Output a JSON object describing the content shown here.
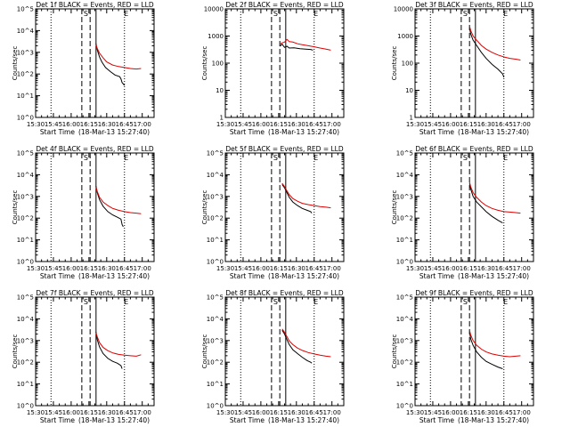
{
  "figure": {
    "xlabel_prefix": "Start Time",
    "start_time": "(18-Mar-13 15:27:40)",
    "time_ticks": [
      "15:30",
      "15:45",
      "16:00",
      "16:15",
      "16:30",
      "16:45",
      "17:00"
    ],
    "ylabel": "Counts/sec",
    "legend_text": "BLACK = Events, RED = LLD",
    "marker_labels": [
      "S",
      "E"
    ],
    "colors": {
      "events": "#000000",
      "lld": "#dd0000",
      "frame": "#000000"
    }
  },
  "chart_data": [
    {
      "type": "line",
      "detector": "Det 1f",
      "title": "Det 1f  BLACK = Events, RED = LLD",
      "y_log": true,
      "ylim": [
        1,
        100000
      ],
      "yticks": [
        "10^0",
        "10^1",
        "10^2",
        "10^3",
        "10^4",
        "10^5"
      ],
      "xlim": [
        "15:30",
        "17:10"
      ],
      "dotted_x": [
        "15:43",
        "16:45"
      ],
      "dashed_x": [
        "16:09",
        "16:16"
      ],
      "solid_x": [
        "16:21"
      ],
      "marker_S_x": "16:09",
      "marker_E_x": "16:43",
      "series": [
        {
          "name": "Events",
          "color": "#000000",
          "x": [
            "16:21",
            "16:22",
            "16:24",
            "16:26",
            "16:29",
            "16:33",
            "16:37",
            "16:41",
            "16:42",
            "16:43",
            "16:44",
            "16:45"
          ],
          "y": [
            2500,
            1300,
            600,
            350,
            200,
            130,
            90,
            75,
            60,
            40,
            35,
            30
          ]
        },
        {
          "name": "LLD",
          "color": "#dd0000",
          "x": [
            "16:21",
            "16:22",
            "16:24",
            "16:27",
            "16:30",
            "16:35",
            "16:40",
            "16:45",
            "16:50",
            "16:55",
            "16:59"
          ],
          "y": [
            2200,
            1500,
            900,
            550,
            360,
            260,
            220,
            200,
            180,
            170,
            180
          ]
        }
      ]
    },
    {
      "type": "line",
      "detector": "Det 2f",
      "title": "Det 2f  BLACK = Events, RED = LLD",
      "y_log": true,
      "ylim": [
        1,
        10000
      ],
      "yticks": [
        "1",
        "10",
        "100",
        "1000",
        "10000"
      ],
      "xlim": [
        "15:30",
        "17:10"
      ],
      "dotted_x": [
        "15:43",
        "16:45"
      ],
      "dashed_x": [
        "16:09",
        "16:16"
      ],
      "solid_x": [
        "16:21"
      ],
      "marker_S_x": "16:09",
      "marker_E_x": "16:43",
      "series": [
        {
          "name": "Events",
          "color": "#000000",
          "x": [
            "16:16",
            "16:18",
            "16:20",
            "16:22",
            "16:24",
            "16:28",
            "16:33",
            "16:38",
            "16:42",
            "16:44"
          ],
          "y": [
            420,
            500,
            380,
            420,
            360,
            370,
            340,
            330,
            320,
            300
          ]
        },
        {
          "name": "LLD",
          "color": "#dd0000",
          "x": [
            "16:16",
            "16:18",
            "16:20",
            "16:22",
            "16:24",
            "16:27",
            "16:31",
            "16:35",
            "16:40",
            "16:45",
            "16:50",
            "16:55",
            "16:59"
          ],
          "y": [
            500,
            560,
            600,
            750,
            620,
            600,
            520,
            480,
            440,
            400,
            360,
            330,
            300
          ]
        }
      ]
    },
    {
      "type": "line",
      "detector": "Det 3f",
      "title": "Det 3f  BLACK = Events, RED = LLD",
      "y_log": true,
      "ylim": [
        1,
        10000
      ],
      "yticks": [
        "1",
        "10",
        "100",
        "1000",
        "10000"
      ],
      "xlim": [
        "15:30",
        "17:10"
      ],
      "dotted_x": [
        "15:43",
        "16:45"
      ],
      "dashed_x": [
        "16:09",
        "16:16"
      ],
      "solid_x": [
        "16:21"
      ],
      "marker_S_x": "16:09",
      "marker_E_x": "16:43",
      "series": [
        {
          "name": "Events",
          "color": "#000000",
          "x": [
            "16:16",
            "16:17",
            "16:19",
            "16:22",
            "16:26",
            "16:30",
            "16:35",
            "16:40",
            "16:44",
            "16:45"
          ],
          "y": [
            2000,
            1200,
            700,
            450,
            250,
            150,
            90,
            60,
            40,
            30
          ]
        },
        {
          "name": "LLD",
          "color": "#dd0000",
          "x": [
            "16:16",
            "16:17",
            "16:19",
            "16:22",
            "16:26",
            "16:30",
            "16:35",
            "16:40",
            "16:45",
            "16:50",
            "16:55",
            "16:59"
          ],
          "y": [
            2300,
            1600,
            1000,
            700,
            450,
            330,
            250,
            200,
            170,
            150,
            140,
            130
          ]
        }
      ]
    },
    {
      "type": "line",
      "detector": "Det 4f",
      "title": "Det 4f  BLACK = Events, RED = LLD",
      "y_log": true,
      "ylim": [
        1,
        100000
      ],
      "yticks": [
        "10^0",
        "10^1",
        "10^2",
        "10^3",
        "10^4",
        "10^5"
      ],
      "xlim": [
        "15:30",
        "17:10"
      ],
      "dotted_x": [
        "15:43",
        "16:45"
      ],
      "dashed_x": [
        "16:09",
        "16:16"
      ],
      "solid_x": [
        "16:21"
      ],
      "marker_S_x": "16:09",
      "marker_E_x": "16:43",
      "series": [
        {
          "name": "Events",
          "color": "#000000",
          "x": [
            "16:21",
            "16:22",
            "16:24",
            "16:27",
            "16:31",
            "16:35",
            "16:39",
            "16:42",
            "16:43",
            "16:44"
          ],
          "y": [
            3000,
            1500,
            700,
            350,
            200,
            140,
            110,
            90,
            50,
            40
          ]
        },
        {
          "name": "LLD",
          "color": "#dd0000",
          "x": [
            "16:21",
            "16:22",
            "16:24",
            "16:27",
            "16:31",
            "16:35",
            "16:40",
            "16:45",
            "16:50",
            "16:55",
            "16:59"
          ],
          "y": [
            2600,
            1700,
            900,
            550,
            380,
            280,
            230,
            200,
            180,
            170,
            160
          ]
        }
      ]
    },
    {
      "type": "line",
      "detector": "Det 5f",
      "title": "Det 5f  BLACK = Events, RED = LLD",
      "y_log": true,
      "ylim": [
        1,
        100000
      ],
      "yticks": [
        "10^0",
        "10^1",
        "10^2",
        "10^3",
        "10^4",
        "10^5"
      ],
      "xlim": [
        "15:30",
        "17:10"
      ],
      "dotted_x": [
        "15:43",
        "16:45"
      ],
      "dashed_x": [
        "16:09",
        "16:16"
      ],
      "solid_x": [
        "16:21"
      ],
      "marker_S_x": "16:09",
      "marker_E_x": "16:43",
      "series": [
        {
          "name": "Events",
          "color": "#000000",
          "x": [
            "16:18",
            "16:20",
            "16:22",
            "16:24",
            "16:27",
            "16:31",
            "16:35",
            "16:39",
            "16:42",
            "16:43"
          ],
          "y": [
            3500,
            2500,
            1500,
            900,
            550,
            380,
            280,
            230,
            200,
            170
          ]
        },
        {
          "name": "LLD",
          "color": "#dd0000",
          "x": [
            "16:18",
            "16:20",
            "16:22",
            "16:24",
            "16:27",
            "16:31",
            "16:35",
            "16:40",
            "16:45",
            "16:50",
            "16:55",
            "16:59"
          ],
          "y": [
            4000,
            2800,
            1800,
            1200,
            800,
            600,
            480,
            420,
            380,
            340,
            320,
            300
          ]
        }
      ]
    },
    {
      "type": "line",
      "detector": "Det 6f",
      "title": "Det 6f  BLACK = Events, RED = LLD",
      "y_log": true,
      "ylim": [
        1,
        100000
      ],
      "yticks": [
        "10^0",
        "10^1",
        "10^2",
        "10^3",
        "10^4",
        "10^5"
      ],
      "xlim": [
        "15:30",
        "17:10"
      ],
      "dotted_x": [
        "15:43",
        "16:45"
      ],
      "dashed_x": [
        "16:09",
        "16:16"
      ],
      "solid_x": [
        "16:21"
      ],
      "marker_S_x": "16:09",
      "marker_E_x": "16:43",
      "series": [
        {
          "name": "Events",
          "color": "#000000",
          "x": [
            "16:16",
            "16:17",
            "16:19",
            "16:22",
            "16:26",
            "16:30",
            "16:35",
            "16:40",
            "16:44"
          ],
          "y": [
            4000,
            2200,
            1000,
            550,
            330,
            200,
            120,
            80,
            60
          ]
        },
        {
          "name": "LLD",
          "color": "#dd0000",
          "x": [
            "16:16",
            "16:17",
            "16:19",
            "16:22",
            "16:26",
            "16:30",
            "16:35",
            "16:40",
            "16:45",
            "16:50",
            "16:55",
            "16:59"
          ],
          "y": [
            4500,
            2800,
            1500,
            900,
            550,
            380,
            280,
            230,
            200,
            190,
            180,
            170
          ]
        }
      ]
    },
    {
      "type": "line",
      "detector": "Det 7f",
      "title": "Det 7f  BLACK = Events, RED = LLD",
      "y_log": true,
      "ylim": [
        1,
        100000
      ],
      "yticks": [
        "10^0",
        "10^1",
        "10^2",
        "10^3",
        "10^4",
        "10^5"
      ],
      "xlim": [
        "15:30",
        "17:10"
      ],
      "dotted_x": [
        "15:43",
        "16:45"
      ],
      "dashed_x": [
        "16:09",
        "16:16"
      ],
      "solid_x": [
        "16:21"
      ],
      "marker_S_x": "16:09",
      "marker_E_x": "16:43",
      "series": [
        {
          "name": "Events",
          "color": "#000000",
          "x": [
            "16:21",
            "16:22",
            "16:24",
            "16:27",
            "16:31",
            "16:35",
            "16:39",
            "16:42",
            "16:43"
          ],
          "y": [
            2500,
            1100,
            500,
            250,
            150,
            110,
            90,
            70,
            50
          ]
        },
        {
          "name": "LLD",
          "color": "#dd0000",
          "x": [
            "16:21",
            "16:22",
            "16:24",
            "16:27",
            "16:31",
            "16:35",
            "16:40",
            "16:45",
            "16:50",
            "16:55",
            "16:59"
          ],
          "y": [
            2200,
            1500,
            800,
            480,
            340,
            270,
            230,
            210,
            200,
            190,
            220
          ]
        }
      ]
    },
    {
      "type": "line",
      "detector": "Det 8f",
      "title": "Det 8f  BLACK = Events, RED = LLD",
      "y_log": true,
      "ylim": [
        1,
        100000
      ],
      "yticks": [
        "10^0",
        "10^1",
        "10^2",
        "10^3",
        "10^4",
        "10^5"
      ],
      "xlim": [
        "15:30",
        "17:10"
      ],
      "dotted_x": [
        "15:43",
        "16:45"
      ],
      "dashed_x": [
        "16:09",
        "16:16"
      ],
      "solid_x": [
        "16:21"
      ],
      "marker_S_x": "16:09",
      "marker_E_x": "16:43",
      "series": [
        {
          "name": "Events",
          "color": "#000000",
          "x": [
            "16:18",
            "16:20",
            "16:22",
            "16:24",
            "16:27",
            "16:31",
            "16:35",
            "16:39",
            "16:42",
            "16:43"
          ],
          "y": [
            3000,
            2000,
            1100,
            650,
            380,
            250,
            170,
            120,
            100,
            90
          ]
        },
        {
          "name": "LLD",
          "color": "#dd0000",
          "x": [
            "16:18",
            "16:20",
            "16:22",
            "16:24",
            "16:27",
            "16:31",
            "16:35",
            "16:40",
            "16:45",
            "16:50",
            "16:55",
            "16:59"
          ],
          "y": [
            3400,
            2400,
            1500,
            950,
            650,
            450,
            350,
            280,
            240,
            210,
            190,
            180
          ]
        }
      ]
    },
    {
      "type": "line",
      "detector": "Det 9f",
      "title": "Det 9f  BLACK = Events, RED = LLD",
      "y_log": true,
      "ylim": [
        1,
        100000
      ],
      "yticks": [
        "10^0",
        "10^1",
        "10^2",
        "10^3",
        "10^4",
        "10^5"
      ],
      "xlim": [
        "15:30",
        "17:10"
      ],
      "dotted_x": [
        "15:43",
        "16:45"
      ],
      "dashed_x": [
        "16:09",
        "16:16"
      ],
      "solid_x": [
        "16:21"
      ],
      "marker_S_x": "16:09",
      "marker_E_x": "16:43",
      "series": [
        {
          "name": "Events",
          "color": "#000000",
          "x": [
            "16:16",
            "16:17",
            "16:19",
            "16:22",
            "16:26",
            "16:30",
            "16:35",
            "16:40",
            "16:44"
          ],
          "y": [
            2500,
            1200,
            600,
            300,
            170,
            110,
            80,
            60,
            50
          ]
        },
        {
          "name": "LLD",
          "color": "#dd0000",
          "x": [
            "16:16",
            "16:17",
            "16:19",
            "16:22",
            "16:26",
            "16:30",
            "16:35",
            "16:40",
            "16:45",
            "16:50",
            "16:55",
            "16:59"
          ],
          "y": [
            3000,
            1800,
            1000,
            600,
            400,
            300,
            240,
            210,
            190,
            180,
            190,
            200
          ]
        }
      ]
    }
  ]
}
